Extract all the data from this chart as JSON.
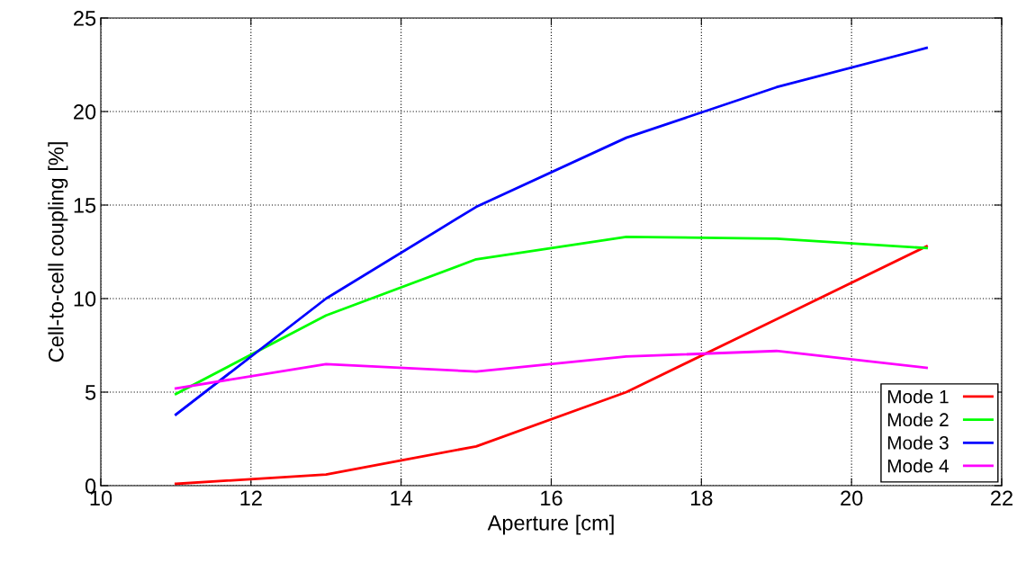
{
  "chart_data": {
    "type": "line",
    "xlabel": "Aperture [cm]",
    "ylabel": "Cell-to-cell coupling [%]",
    "x": [
      11,
      13,
      15,
      17,
      19,
      21
    ],
    "series": [
      {
        "name": "Mode 1",
        "color": "#ff0000",
        "values": [
          0.1,
          0.6,
          2.1,
          5.0,
          8.9,
          12.8
        ]
      },
      {
        "name": "Mode 2",
        "color": "#00ff00",
        "values": [
          4.9,
          9.1,
          12.1,
          13.3,
          13.2,
          12.7
        ]
      },
      {
        "name": "Mode 3",
        "color": "#0000ff",
        "values": [
          3.8,
          10.0,
          14.9,
          18.6,
          21.3,
          23.4
        ]
      },
      {
        "name": "Mode 4",
        "color": "#ff00ff",
        "values": [
          5.2,
          6.5,
          6.1,
          6.9,
          7.2,
          6.3
        ]
      }
    ],
    "xlim": [
      10,
      22
    ],
    "xticks": [
      10,
      12,
      14,
      16,
      18,
      20,
      22
    ],
    "ylim": [
      0,
      25
    ],
    "yticks": [
      0,
      5,
      10,
      15,
      20,
      25
    ],
    "grid": true,
    "legend": "bottom right",
    "marker": "none",
    "line_style": "solid"
  }
}
